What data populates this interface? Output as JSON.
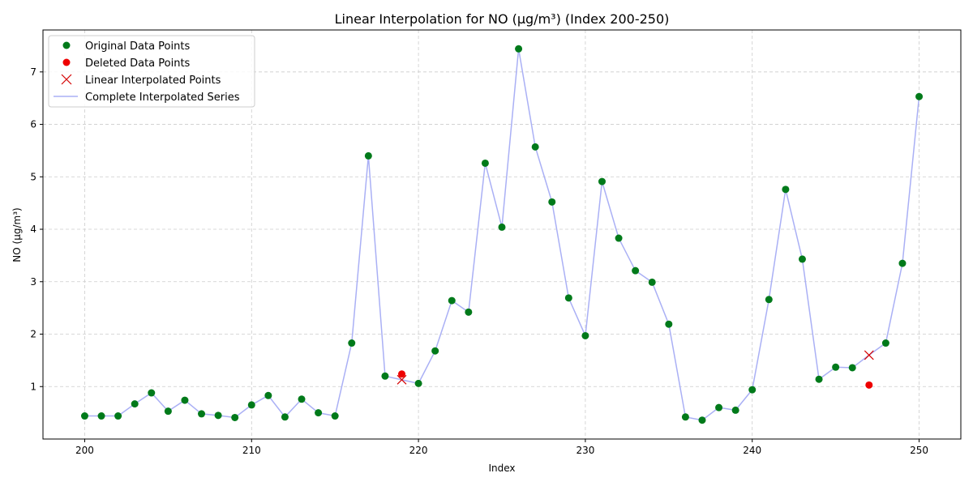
{
  "chart_data": {
    "type": "line",
    "title": "Linear Interpolation for NO (μg/m³) (Index 200-250)",
    "xlabel": "Index",
    "ylabel": "NO (μg/m³)",
    "xlim": [
      197.5,
      252.5
    ],
    "ylim": [
      0.0,
      7.8
    ],
    "xticks": [
      200,
      210,
      220,
      230,
      240,
      250
    ],
    "yticks": [
      1,
      2,
      3,
      4,
      5,
      6,
      7
    ],
    "grid": true,
    "legend_position": "top-left",
    "colors": {
      "original": "#007a1a",
      "deleted": "#ee0000",
      "interpolated": "#d40000",
      "series_line": "#aab0f5",
      "grid": "#cccccc"
    },
    "series": [
      {
        "name": "Original Data Points",
        "x": [
          200,
          201,
          202,
          203,
          204,
          205,
          206,
          207,
          208,
          209,
          210,
          211,
          212,
          213,
          214,
          215,
          216,
          217,
          218,
          220,
          221,
          222,
          223,
          224,
          225,
          226,
          227,
          228,
          229,
          230,
          231,
          232,
          233,
          234,
          235,
          236,
          237,
          238,
          239,
          240,
          241,
          242,
          243,
          244,
          245,
          246,
          248,
          249,
          250
        ],
        "y": [
          0.44,
          0.44,
          0.44,
          0.67,
          0.88,
          0.53,
          0.74,
          0.48,
          0.45,
          0.41,
          0.65,
          0.83,
          0.42,
          0.76,
          0.5,
          0.44,
          1.83,
          5.4,
          1.2,
          1.06,
          1.68,
          2.64,
          2.42,
          5.26,
          4.04,
          7.44,
          5.57,
          4.52,
          2.69,
          1.97,
          4.91,
          3.83,
          3.21,
          2.99,
          2.19,
          0.42,
          0.36,
          0.6,
          0.55,
          0.94,
          2.66,
          4.76,
          3.43,
          1.14,
          1.37,
          1.36,
          1.83,
          3.35,
          6.53
        ]
      },
      {
        "name": "Deleted Data Points",
        "x": [
          219,
          247
        ],
        "y": [
          1.24,
          1.03
        ]
      },
      {
        "name": "Linear Interpolated Points",
        "x": [
          219,
          247
        ],
        "y": [
          1.13,
          1.6
        ]
      },
      {
        "name": "Complete Interpolated Series",
        "x": [
          200,
          201,
          202,
          203,
          204,
          205,
          206,
          207,
          208,
          209,
          210,
          211,
          212,
          213,
          214,
          215,
          216,
          217,
          218,
          219,
          220,
          221,
          222,
          223,
          224,
          225,
          226,
          227,
          228,
          229,
          230,
          231,
          232,
          233,
          234,
          235,
          236,
          237,
          238,
          239,
          240,
          241,
          242,
          243,
          244,
          245,
          246,
          247,
          248,
          249,
          250
        ],
        "y": [
          0.44,
          0.44,
          0.44,
          0.67,
          0.88,
          0.53,
          0.74,
          0.48,
          0.45,
          0.41,
          0.65,
          0.83,
          0.42,
          0.76,
          0.5,
          0.44,
          1.83,
          5.4,
          1.2,
          1.13,
          1.06,
          1.68,
          2.64,
          2.42,
          5.26,
          4.04,
          7.44,
          5.57,
          4.52,
          2.69,
          1.97,
          4.91,
          3.83,
          3.21,
          2.99,
          2.19,
          0.42,
          0.36,
          0.6,
          0.55,
          0.94,
          2.66,
          4.76,
          3.43,
          1.14,
          1.37,
          1.36,
          1.6,
          1.83,
          3.35,
          6.53
        ]
      }
    ]
  }
}
